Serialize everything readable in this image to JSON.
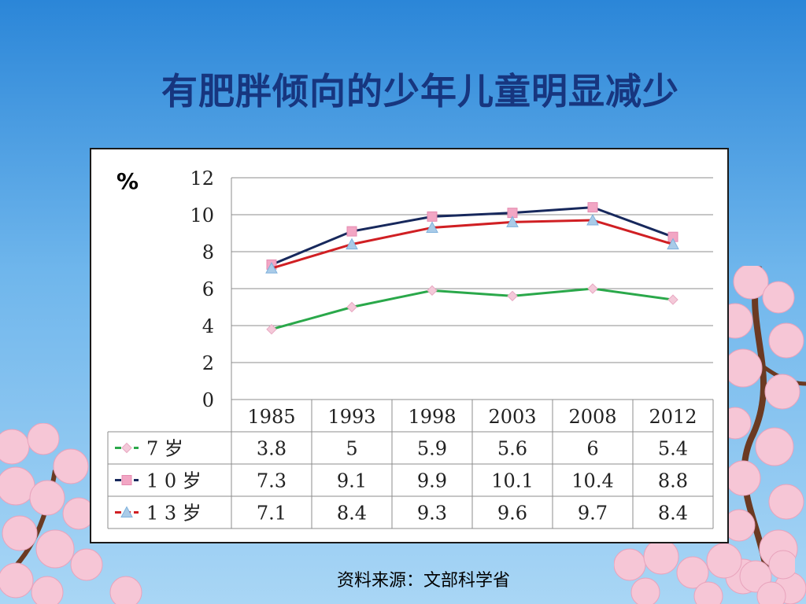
{
  "slide": {
    "title": "有肥胖倾向的少年儿童明显减少",
    "source": "资料来源：文部科学省"
  },
  "chart_data": {
    "type": "line",
    "title": "",
    "ylabel": "%",
    "xlabel": "",
    "ylim": [
      0,
      12
    ],
    "yticks": [
      0,
      2,
      4,
      6,
      8,
      10,
      12
    ],
    "categories": [
      "1985",
      "1993",
      "1998",
      "2003",
      "2008",
      "2012"
    ],
    "series": [
      {
        "name": "7 岁",
        "color": "#2aa84a",
        "marker": "diamond",
        "values": [
          3.8,
          5,
          5.9,
          5.6,
          6,
          5.4
        ],
        "labels": [
          "3.8",
          "5",
          "5.9",
          "5.6",
          "6",
          "5.4"
        ]
      },
      {
        "name": "1 0 岁",
        "color": "#17285c",
        "marker": "square",
        "values": [
          7.3,
          9.1,
          9.9,
          10.1,
          10.4,
          8.8
        ],
        "labels": [
          "7.3",
          "9.1",
          "9.9",
          "10.1",
          "10.4",
          "8.8"
        ]
      },
      {
        "name": "1 3 岁",
        "color": "#d01f23",
        "marker": "triangle",
        "values": [
          7.1,
          8.4,
          9.3,
          9.6,
          9.7,
          8.4
        ],
        "labels": [
          "7.1",
          "8.4",
          "9.3",
          "9.6",
          "9.7",
          "8.4"
        ]
      }
    ],
    "grid": true,
    "legend": "data-table"
  }
}
